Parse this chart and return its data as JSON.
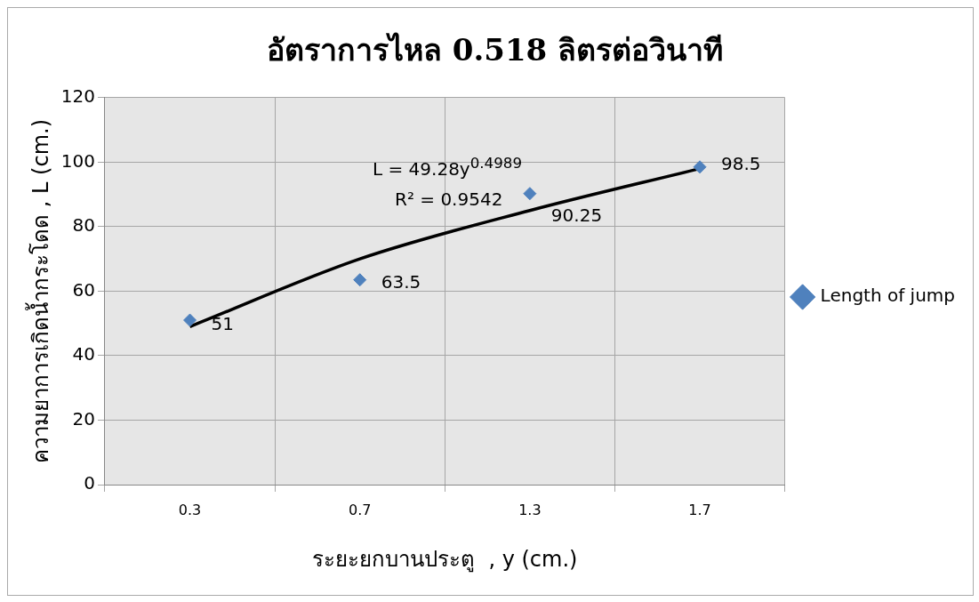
{
  "chart_data": {
    "type": "scatter",
    "title": "อัตราการไหล 0.518 ลิตรต่อวินาที",
    "xlabel": "ระยะยกบานประตู  , y (cm.)",
    "ylabel": "ความยาการเกิดน้ำกระโดด , L (cm.)",
    "categories": [
      "0.3",
      "0.7",
      "1.3",
      "1.7"
    ],
    "series": [
      {
        "name": "Length of jump",
        "color": "#4f81bd",
        "values": [
          51,
          63.5,
          90.25,
          98.5
        ],
        "value_labels": [
          "51",
          "63.5",
          "90.25",
          "98.5"
        ],
        "marker": "diamond"
      },
      {
        "type": "line",
        "color": "#000000",
        "values": [
          49,
          70,
          85,
          98
        ],
        "marker": "none"
      }
    ],
    "ylim": [
      0,
      120
    ],
    "yticks": [
      0,
      20,
      40,
      60,
      80,
      100,
      120
    ],
    "grid": true,
    "legend": "right",
    "annotations": [
      "L = 49.28y$^{0.4989}$",
      "R² = 0.9542"
    ]
  }
}
